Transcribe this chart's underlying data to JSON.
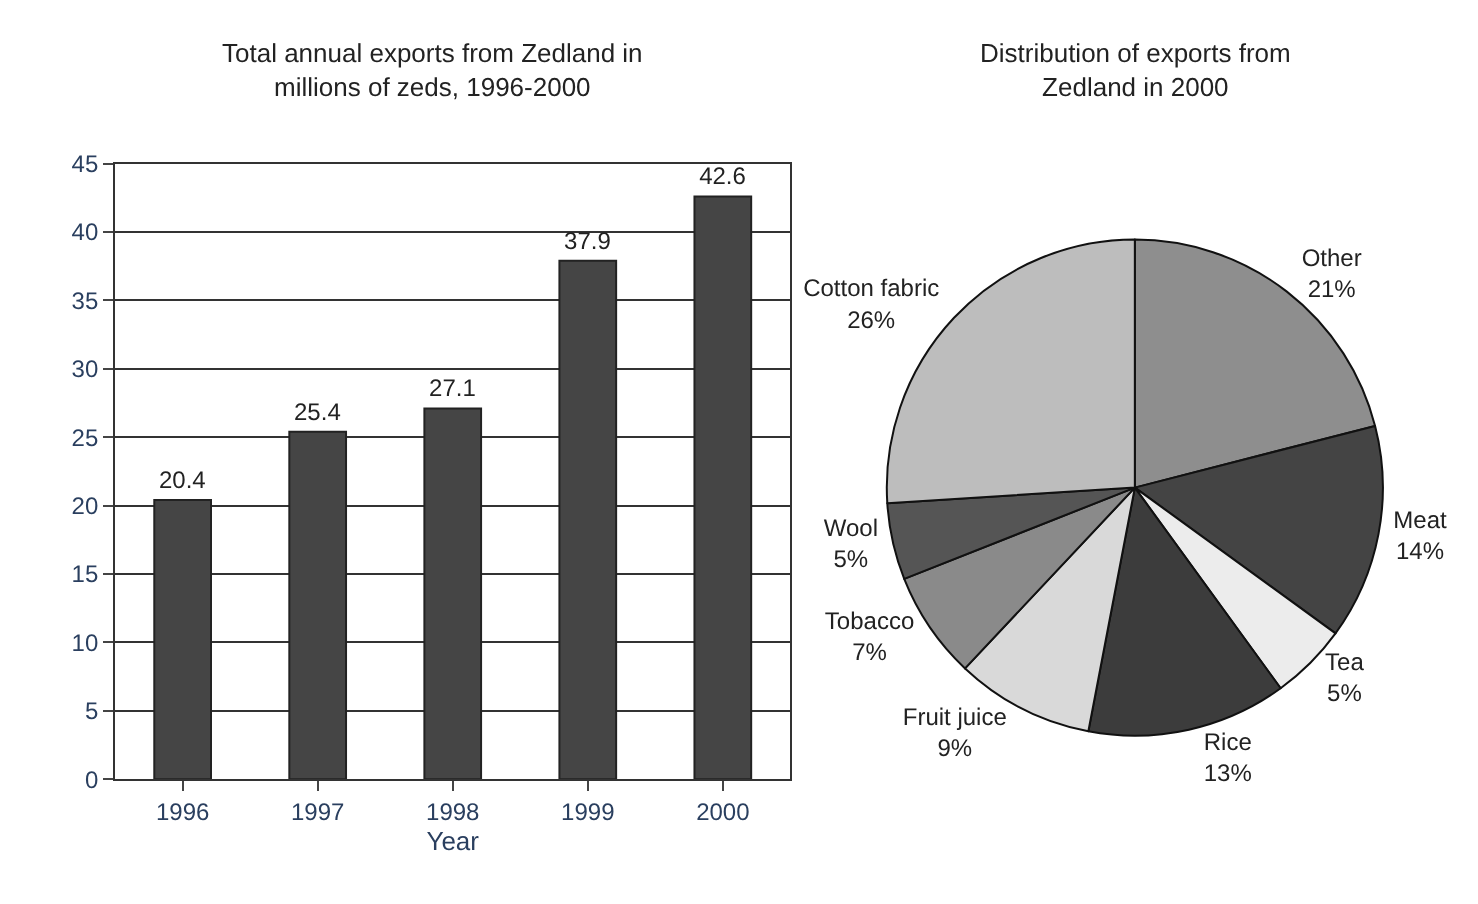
{
  "chart_data": [
    {
      "type": "bar",
      "title": "Total annual exports from Zedland in\nmillions of zeds, 1996-2000",
      "xlabel": "Year",
      "categories": [
        "1996",
        "1997",
        "1998",
        "1999",
        "2000"
      ],
      "values": [
        20.4,
        25.4,
        27.1,
        37.9,
        42.6
      ],
      "color": "#454545",
      "ylim": [
        0,
        45
      ],
      "yticks": [
        0,
        5,
        10,
        15,
        20,
        25,
        30,
        35,
        40,
        45
      ],
      "grid": "y",
      "data_labels": true,
      "legend": false
    },
    {
      "type": "pie",
      "title": "Distribution of exports from\nZedland in 2000",
      "categories": [
        "Other",
        "Meat",
        "Tea",
        "Rice",
        "Fruit juice",
        "Tobacco",
        "Wool",
        "Cotton fabric"
      ],
      "values": [
        21,
        14,
        5,
        13,
        9,
        7,
        5,
        26
      ],
      "value_labels": [
        "21%",
        "14%",
        "5%",
        "13%",
        "9%",
        "7%",
        "5%",
        "26%"
      ],
      "colors": [
        "#8e8e8e",
        "#444444",
        "#ececec",
        "#3c3c3c",
        "#d9d9d9",
        "#8a8a8a",
        "#555555",
        "#bdbdbd"
      ],
      "legend": false
    }
  ]
}
